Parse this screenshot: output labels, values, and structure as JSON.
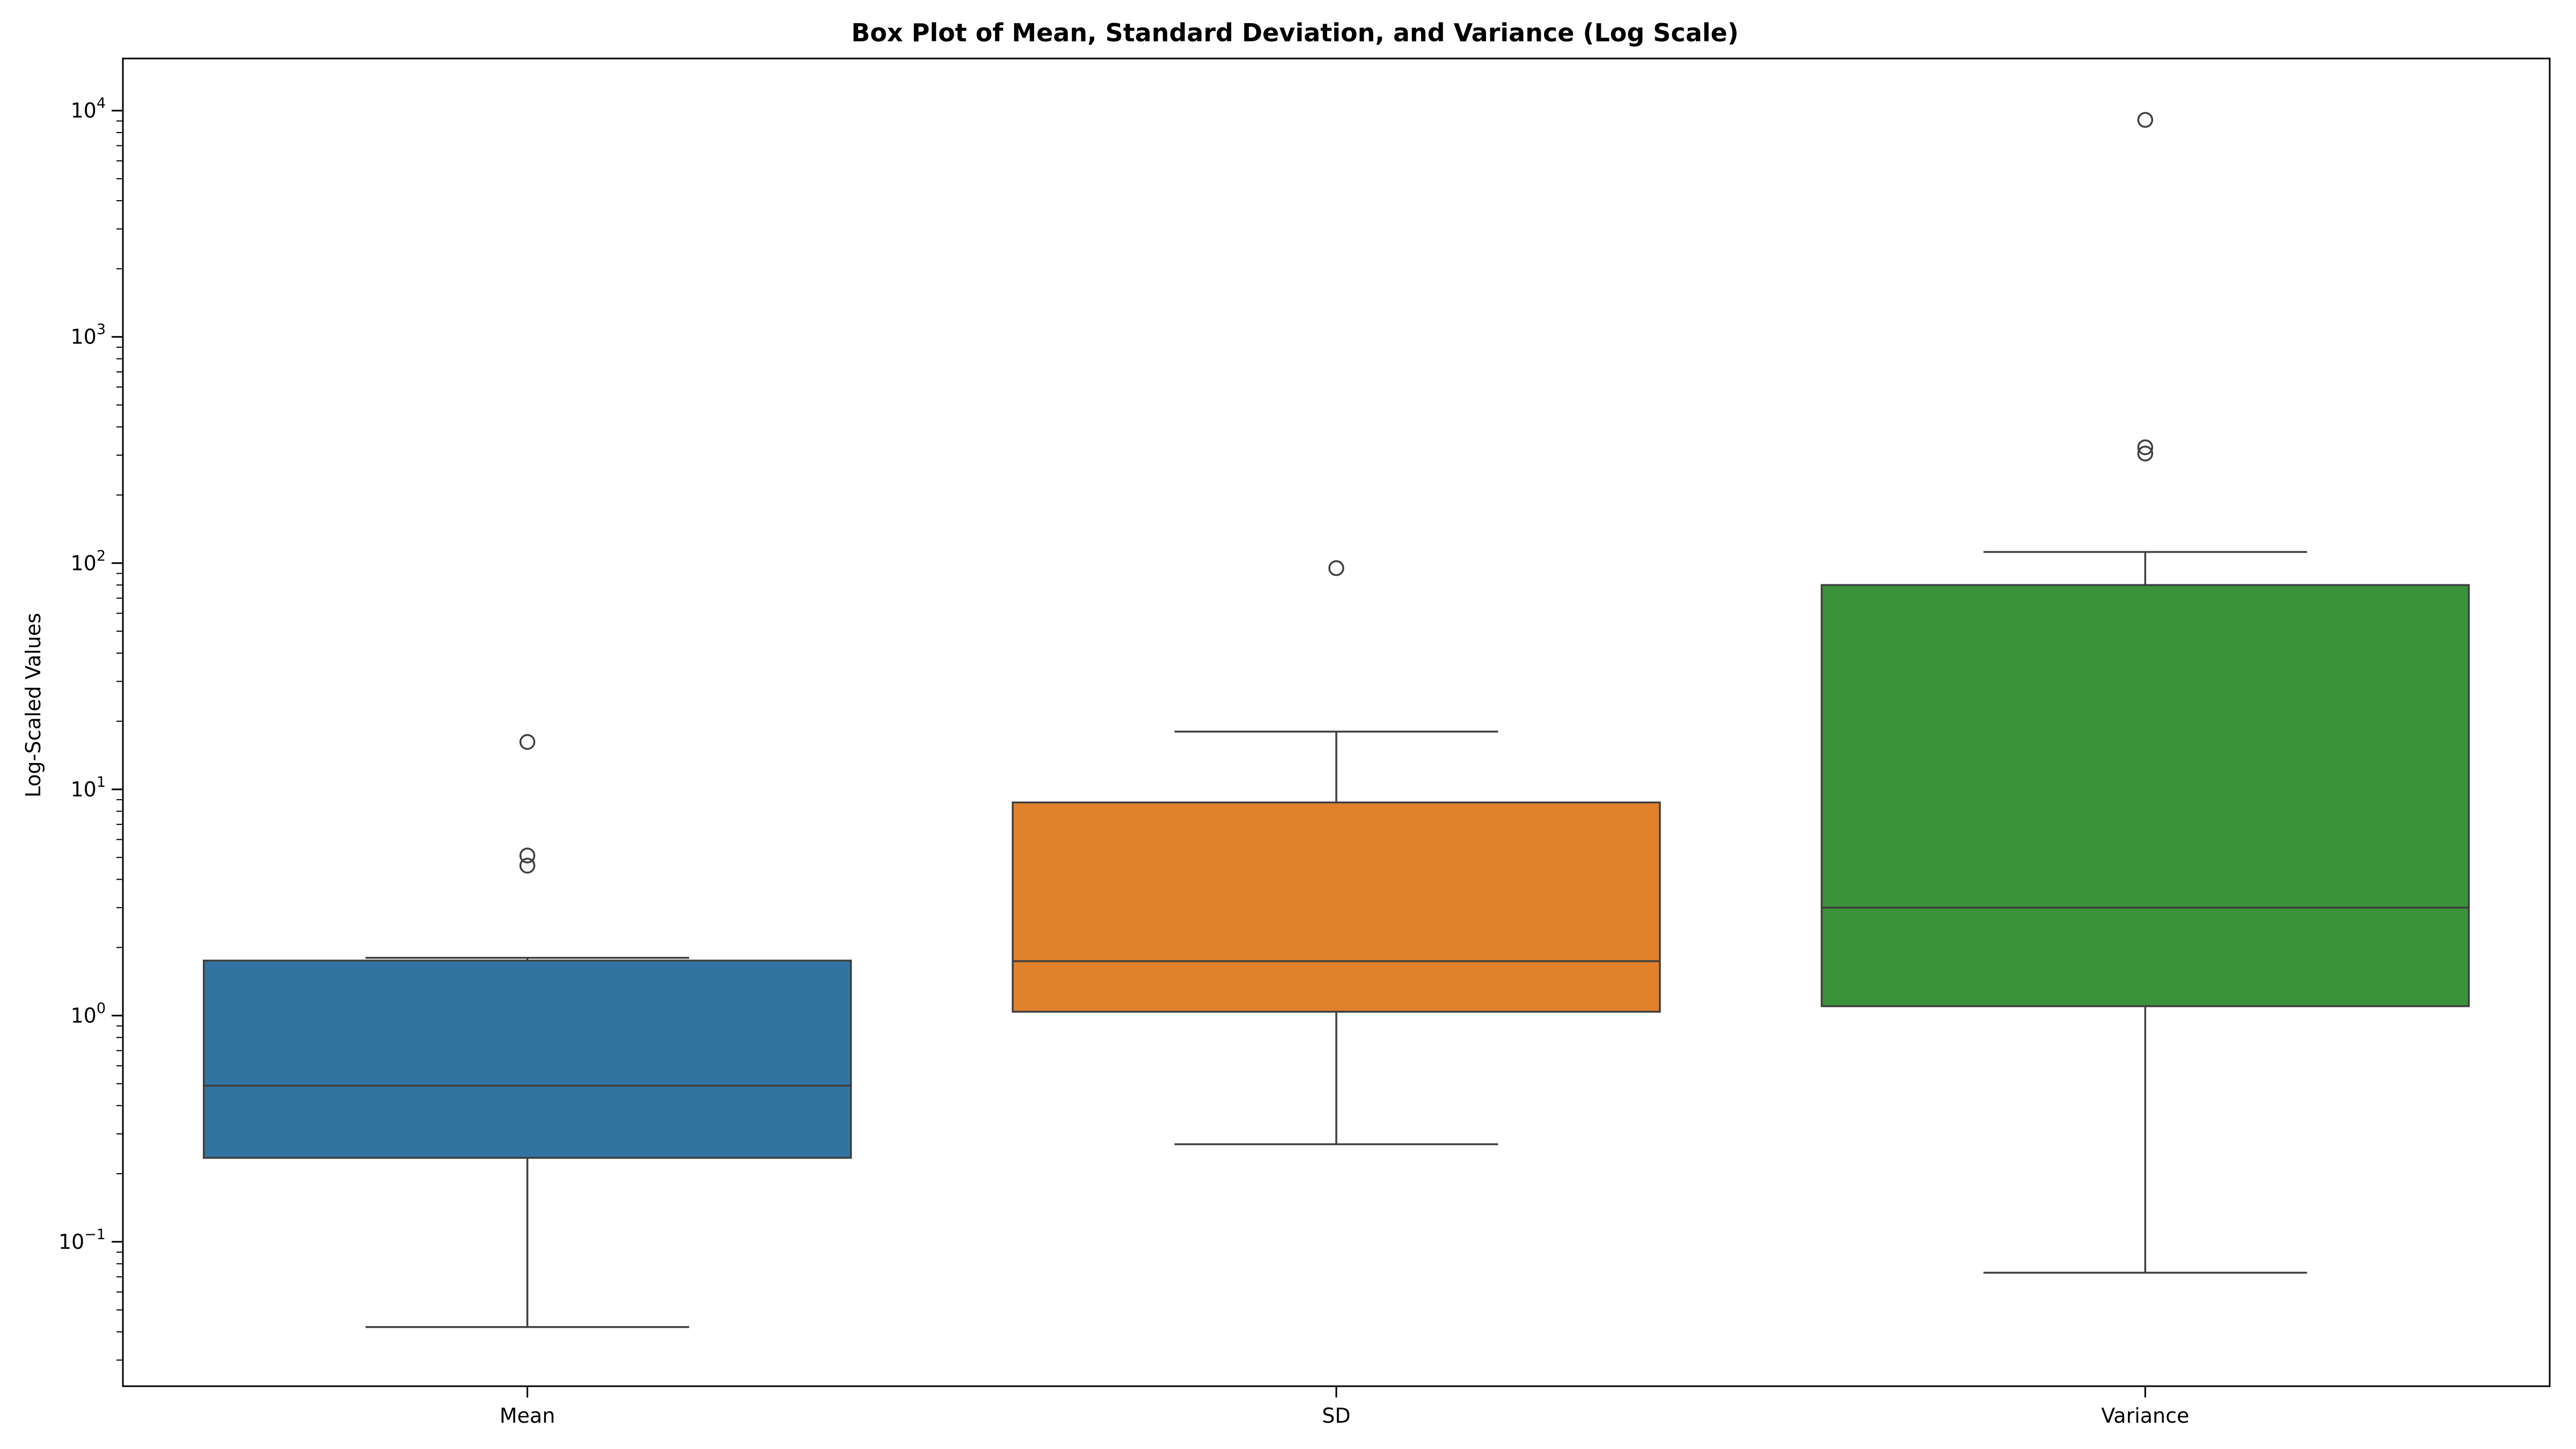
{
  "chart_data": {
    "type": "box",
    "title": "Box Plot of Mean, Standard Deviation, and Variance (Log Scale)",
    "xlabel": "",
    "ylabel": "Log-Scaled Values",
    "yscale": "log",
    "ylim": [
      0.023,
      17000
    ],
    "y_ticks": [
      {
        "base": "10",
        "exp": "−1",
        "value": 0.1
      },
      {
        "base": "10",
        "exp": "0",
        "value": 1
      },
      {
        "base": "10",
        "exp": "1",
        "value": 10
      },
      {
        "base": "10",
        "exp": "2",
        "value": 100
      },
      {
        "base": "10",
        "exp": "3",
        "value": 1000
      },
      {
        "base": "10",
        "exp": "4",
        "value": 10000
      }
    ],
    "grid": false,
    "legend": "none",
    "categories": [
      "Mean",
      "SD",
      "Variance"
    ],
    "boxes": [
      {
        "category": "Mean",
        "color": "#3274a1",
        "whisker_low": 0.042,
        "q1": 0.235,
        "median": 0.49,
        "q3": 1.75,
        "whisker_high": 1.8,
        "outliers": [
          4.6,
          5.1,
          16.2
        ]
      },
      {
        "category": "SD",
        "color": "#e1812c",
        "whisker_low": 0.27,
        "q1": 1.04,
        "median": 1.74,
        "q3": 8.75,
        "whisker_high": 18.0,
        "outliers": [
          95
        ]
      },
      {
        "category": "Variance",
        "color": "#3a923a",
        "whisker_low": 0.073,
        "q1": 1.1,
        "median": 3.0,
        "q3": 80,
        "whisker_high": 112,
        "outliers": [
          305,
          325,
          9100
        ]
      }
    ]
  }
}
